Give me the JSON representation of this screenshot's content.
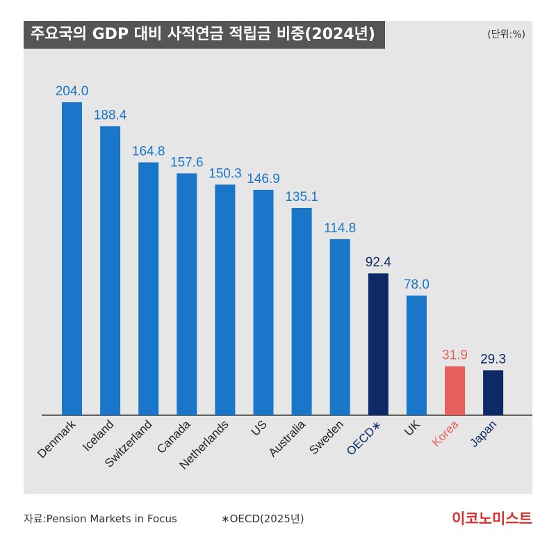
{
  "title": "주요국의 GDP 대비 사적연금 적립금 비중(2024년)",
  "unit": "(단위:%)",
  "source": "자료:Pension Markets in Focus",
  "note": "∗OECD(2025년)",
  "brand": "이코노미스트",
  "colors": {
    "standard": "#1a76c9",
    "highlight_dark": "#0e2a66",
    "highlight_red": "#e8605c",
    "header_bg": "#555555",
    "plot_bg": "#e6e6e6"
  },
  "chart_data": {
    "type": "bar",
    "title": "주요국의 GDP 대비 사적연금 적립금 비중(2024년)",
    "xlabel": "",
    "ylabel": "",
    "ylim": [
      0,
      204
    ],
    "grid": false,
    "legend": "none",
    "categories": [
      "Denmark",
      "Iceland",
      "Switzerland",
      "Canada",
      "Netherlands",
      "US",
      "Australia",
      "Sweden",
      "OECD∗",
      "UK",
      "Korea",
      "Japan"
    ],
    "values": [
      204.0,
      188.4,
      164.8,
      157.6,
      150.3,
      146.9,
      135.1,
      114.8,
      92.4,
      78.0,
      31.9,
      29.3
    ],
    "value_labels": [
      "204.0",
      "188.4",
      "164.8",
      "157.6",
      "150.3",
      "146.9",
      "135.1",
      "114.8",
      "92.4",
      "78.0",
      "31.9",
      "29.3"
    ],
    "styles": [
      "standard",
      "standard",
      "standard",
      "standard",
      "standard",
      "standard",
      "standard",
      "standard",
      "highlight_dark",
      "standard",
      "highlight_red",
      "highlight_dark"
    ]
  }
}
